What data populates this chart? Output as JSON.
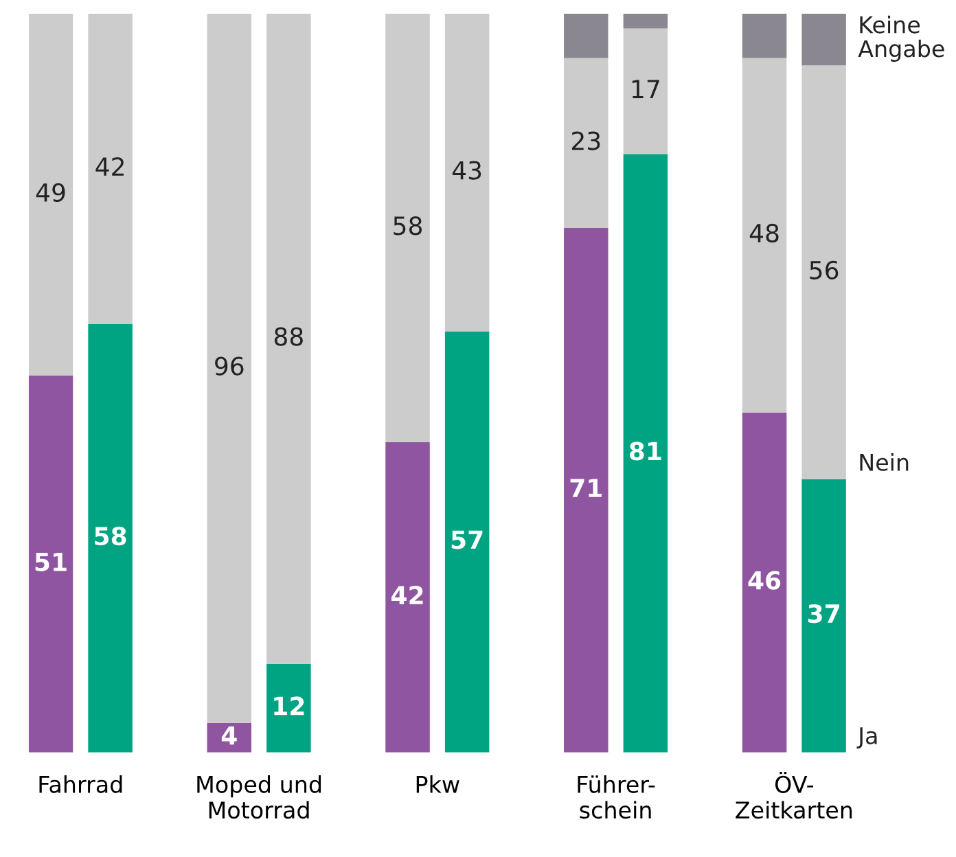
{
  "chart_data": {
    "type": "bar",
    "stacked": true,
    "categories": [
      null,
      "Fahrrad",
      null,
      null,
      null,
      null,
      null,
      "Moped und\nMotorrad",
      null,
      null,
      null,
      null,
      null,
      "Pkw",
      null,
      null,
      null,
      null,
      null,
      "Führer-\nschein",
      null,
      null,
      null,
      null,
      null,
      "ÖV-\nZeitkarten",
      null
    ],
    "series": [
      {
        "name": "Ja",
        "colors": [
          "#8f55a0",
          null,
          "#00a482",
          null,
          null,
          null,
          "#8f55a0",
          null,
          "#00a482",
          null,
          null,
          null,
          "#8f55a0",
          null,
          "#00a482",
          null,
          null,
          null,
          "#8f55a0",
          null,
          "#00a482",
          null,
          null,
          null,
          "#8f55a0",
          null,
          "#00a482"
        ],
        "values": [
          51,
          null,
          58,
          null,
          null,
          null,
          4,
          null,
          12,
          null,
          null,
          null,
          42,
          null,
          57,
          null,
          null,
          null,
          71,
          null,
          81,
          null,
          null,
          null,
          46,
          null,
          37
        ],
        "value_labels": [
          "51",
          null,
          "58",
          null,
          null,
          null,
          "4",
          null,
          "12",
          null,
          null,
          null,
          "42",
          null,
          "57",
          null,
          null,
          null,
          "71",
          null,
          "81",
          null,
          null,
          null,
          "46",
          null,
          "37"
        ]
      },
      {
        "name": "Nein",
        "color": "#cccccc",
        "values": [
          49,
          null,
          42,
          null,
          null,
          null,
          96,
          null,
          88,
          null,
          null,
          null,
          58,
          null,
          43,
          null,
          null,
          null,
          23,
          null,
          17,
          null,
          null,
          null,
          48,
          null,
          56
        ],
        "value_labels": [
          "49",
          null,
          "42",
          null,
          null,
          null,
          "96",
          null,
          "88",
          null,
          null,
          null,
          "58",
          null,
          "43",
          null,
          null,
          null,
          "23",
          null,
          "17",
          null,
          null,
          null,
          "48",
          null,
          "56"
        ]
      },
      {
        "name": "Keine Angabe",
        "color": "#8a8790",
        "values": [
          0,
          null,
          0,
          null,
          null,
          null,
          0,
          null,
          0,
          null,
          null,
          null,
          0,
          null,
          0,
          null,
          null,
          null,
          6,
          null,
          2,
          null,
          null,
          null,
          6,
          null,
          7
        ]
      }
    ],
    "tick_labels": "x",
    "grid": false,
    "legend": "right"
  }
}
